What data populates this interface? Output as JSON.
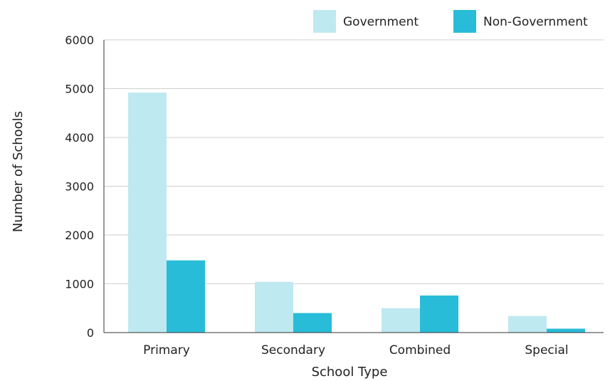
{
  "chart_data": {
    "type": "bar",
    "categories": [
      "Primary",
      "Secondary",
      "Combined",
      "Special"
    ],
    "series": [
      {
        "name": "Government",
        "values": [
          4920,
          1040,
          500,
          340
        ],
        "color": "#bfe9f0"
      },
      {
        "name": "Non-Government",
        "values": [
          1480,
          400,
          760,
          80
        ],
        "color": "#28bcd8"
      }
    ],
    "xlabel": "School Type",
    "ylabel": "Number of Schools",
    "ylim": [
      0,
      6000
    ],
    "yticks": [
      0,
      1000,
      2000,
      3000,
      4000,
      5000,
      6000
    ],
    "grid": true,
    "legend_position": "top-right"
  }
}
